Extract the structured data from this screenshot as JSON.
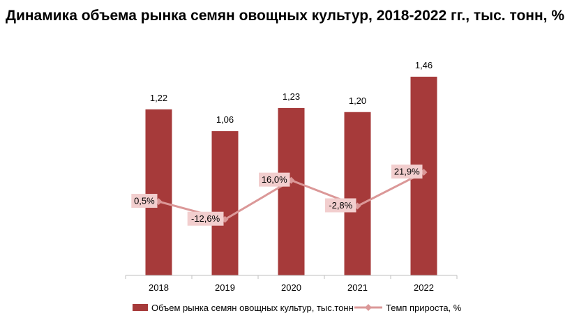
{
  "title": "Динамика объема рынка семян овощных культур, 2018-2022 гг., тыс. тонн, %",
  "colors": {
    "bar": "#A63A3A",
    "line": "#DB9898",
    "label_box": "#F2CECE",
    "axis": "#BFBFBF"
  },
  "chart_data": {
    "type": "bar+line",
    "categories": [
      "2018",
      "2019",
      "2020",
      "2021",
      "2022"
    ],
    "series": [
      {
        "name": "Объем рынка семян овощных культур, тыс.тонн",
        "type": "bar",
        "values": [
          1.22,
          1.06,
          1.23,
          1.2,
          1.46
        ],
        "labels": [
          "1,22",
          "1,06",
          "1,23",
          "1,20",
          "1,46"
        ]
      },
      {
        "name": "Темп прироста, %",
        "type": "line",
        "values": [
          0.5,
          -12.6,
          16.0,
          -2.8,
          21.9
        ],
        "labels": [
          "0,5%",
          "-12,6%",
          "16,0%",
          "-2,8%",
          "21,9%"
        ]
      }
    ],
    "ylim_bar": [
      0,
      1.6
    ],
    "ylim_line": [
      -60,
      70
    ],
    "legend_position": "bottom",
    "grid": false
  }
}
